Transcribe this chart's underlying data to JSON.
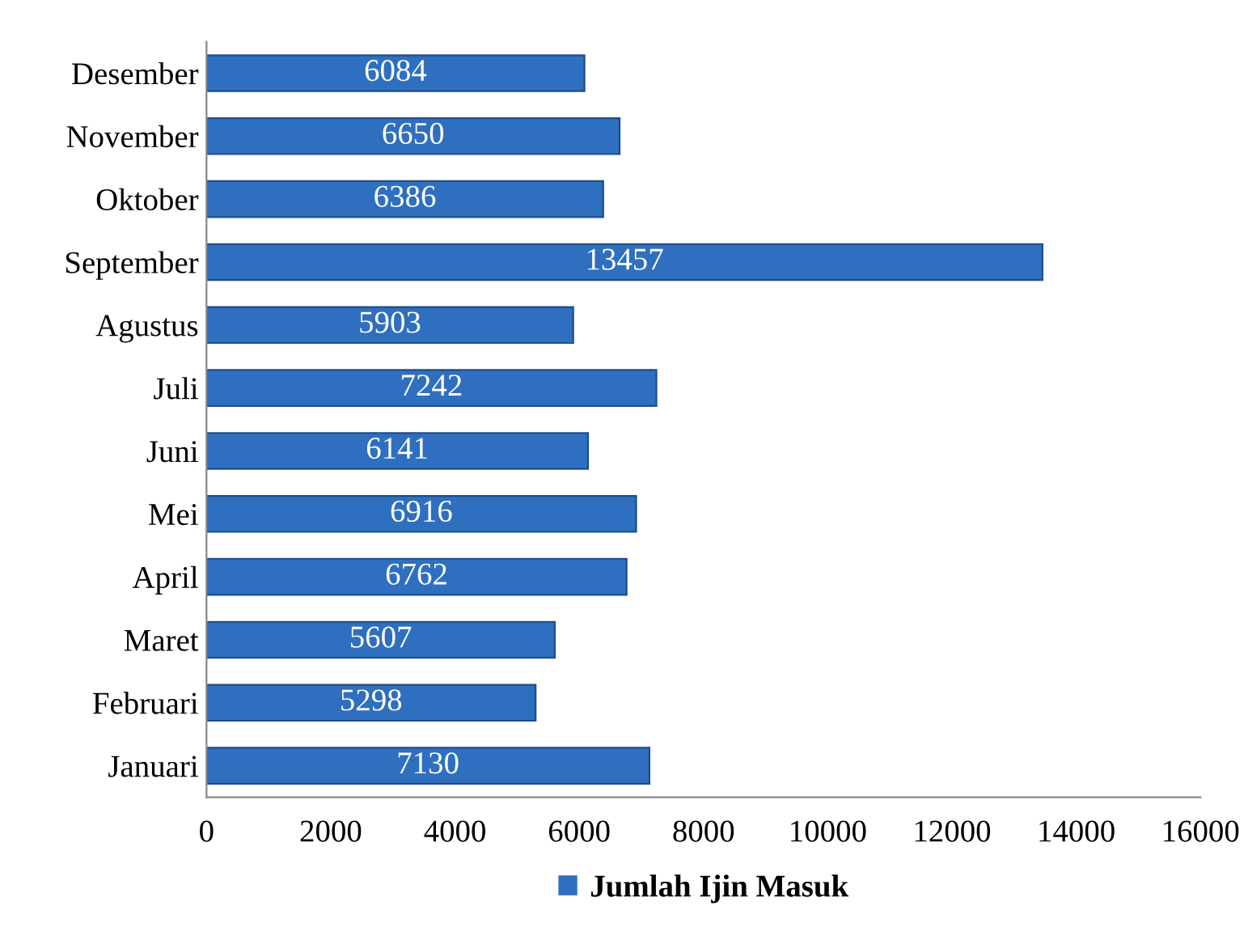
{
  "chart_data": {
    "type": "bar",
    "orientation": "horizontal",
    "categories": [
      "Desember",
      "November",
      "Oktober",
      "September",
      "Agustus",
      "Juli",
      "Juni",
      "Mei",
      "April",
      "Maret",
      "Februari",
      "Januari"
    ],
    "series": [
      {
        "name": "Jumlah Ijin Masuk",
        "color": "#2f6fbf",
        "values": [
          6084,
          6650,
          6386,
          13457,
          5903,
          7242,
          6141,
          6916,
          6762,
          5607,
          5298,
          7130
        ]
      }
    ],
    "xlim": [
      0,
      16000
    ],
    "xticks": [
      0,
      2000,
      4000,
      6000,
      8000,
      10000,
      12000,
      14000,
      16000
    ],
    "data_labels": true,
    "legend": "bottom",
    "grid": false
  }
}
